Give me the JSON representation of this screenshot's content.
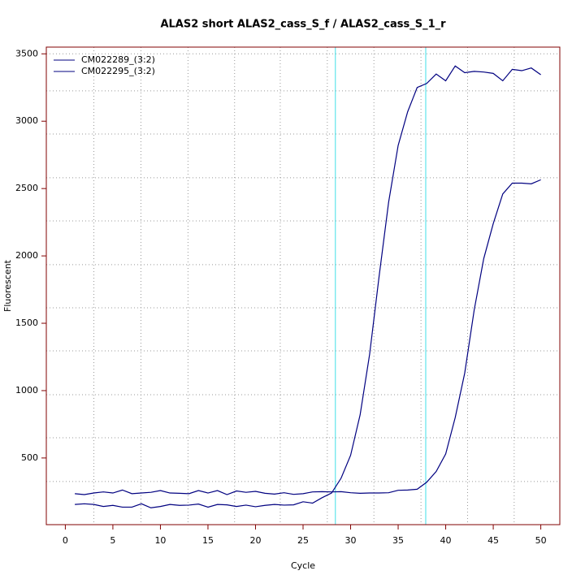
{
  "chart_data": {
    "type": "line",
    "title": "ALAS2 short ALAS2_cass_S_f / ALAS2_cass_S_1_r",
    "x_label": "Cycle",
    "y_label": "Fluorescent",
    "x": [
      1,
      2,
      3,
      4,
      5,
      6,
      7,
      8,
      9,
      10,
      11,
      12,
      13,
      14,
      15,
      16,
      17,
      18,
      19,
      20,
      21,
      22,
      23,
      24,
      25,
      26,
      27,
      28,
      29,
      30,
      31,
      32,
      33,
      34,
      35,
      36,
      37,
      38,
      39,
      40,
      41,
      42,
      43,
      44,
      45,
      46,
      47,
      48,
      49,
      50
    ],
    "series": [
      {
        "name": "CM022289_(3:2)",
        "color": "#000080",
        "values": [
          155,
          160,
          155,
          140,
          148,
          135,
          135,
          160,
          130,
          140,
          155,
          148,
          150,
          158,
          135,
          155,
          152,
          140,
          150,
          138,
          148,
          155,
          150,
          152,
          175,
          165,
          205,
          240,
          350,
          520,
          820,
          1270,
          1850,
          2400,
          2820,
          3070,
          3250,
          3280,
          3350,
          3300,
          3410,
          3360,
          3370,
          3365,
          3355,
          3300,
          3385,
          3375,
          3395,
          3345
        ]
      },
      {
        "name": "CM022295_(3:2)",
        "color": "#000080",
        "values": [
          235,
          228,
          240,
          248,
          240,
          262,
          235,
          240,
          245,
          258,
          240,
          238,
          235,
          258,
          240,
          258,
          228,
          255,
          245,
          252,
          238,
          232,
          242,
          230,
          235,
          248,
          250,
          248,
          250,
          242,
          238,
          240,
          240,
          242,
          260,
          262,
          268,
          320,
          400,
          530,
          800,
          1130,
          1600,
          1980,
          2240,
          2460,
          2540,
          2540,
          2535,
          2565
        ]
      }
    ],
    "xlim": [
      -2,
      52
    ],
    "ylim": [
      5,
      3550
    ],
    "xticks": [
      0,
      5,
      10,
      15,
      20,
      25,
      30,
      35,
      40,
      45,
      50
    ],
    "yticks": [
      500,
      1000,
      1500,
      2000,
      2500,
      3000,
      3500
    ],
    "grid": true,
    "xgrid": [
      3,
      7.95,
      12.9,
      17.8,
      22.6,
      27.55,
      32.45,
      37.4,
      42.3,
      47.2
    ],
    "ygrid": [
      325,
      650,
      970,
      1295,
      1615,
      1935,
      2260,
      2580,
      2905,
      3225,
      3500
    ],
    "thresholds": [
      28.4,
      37.9
    ],
    "threshold_color": "#40e0e8",
    "axis_color": "#800000",
    "legend": "top-left"
  }
}
